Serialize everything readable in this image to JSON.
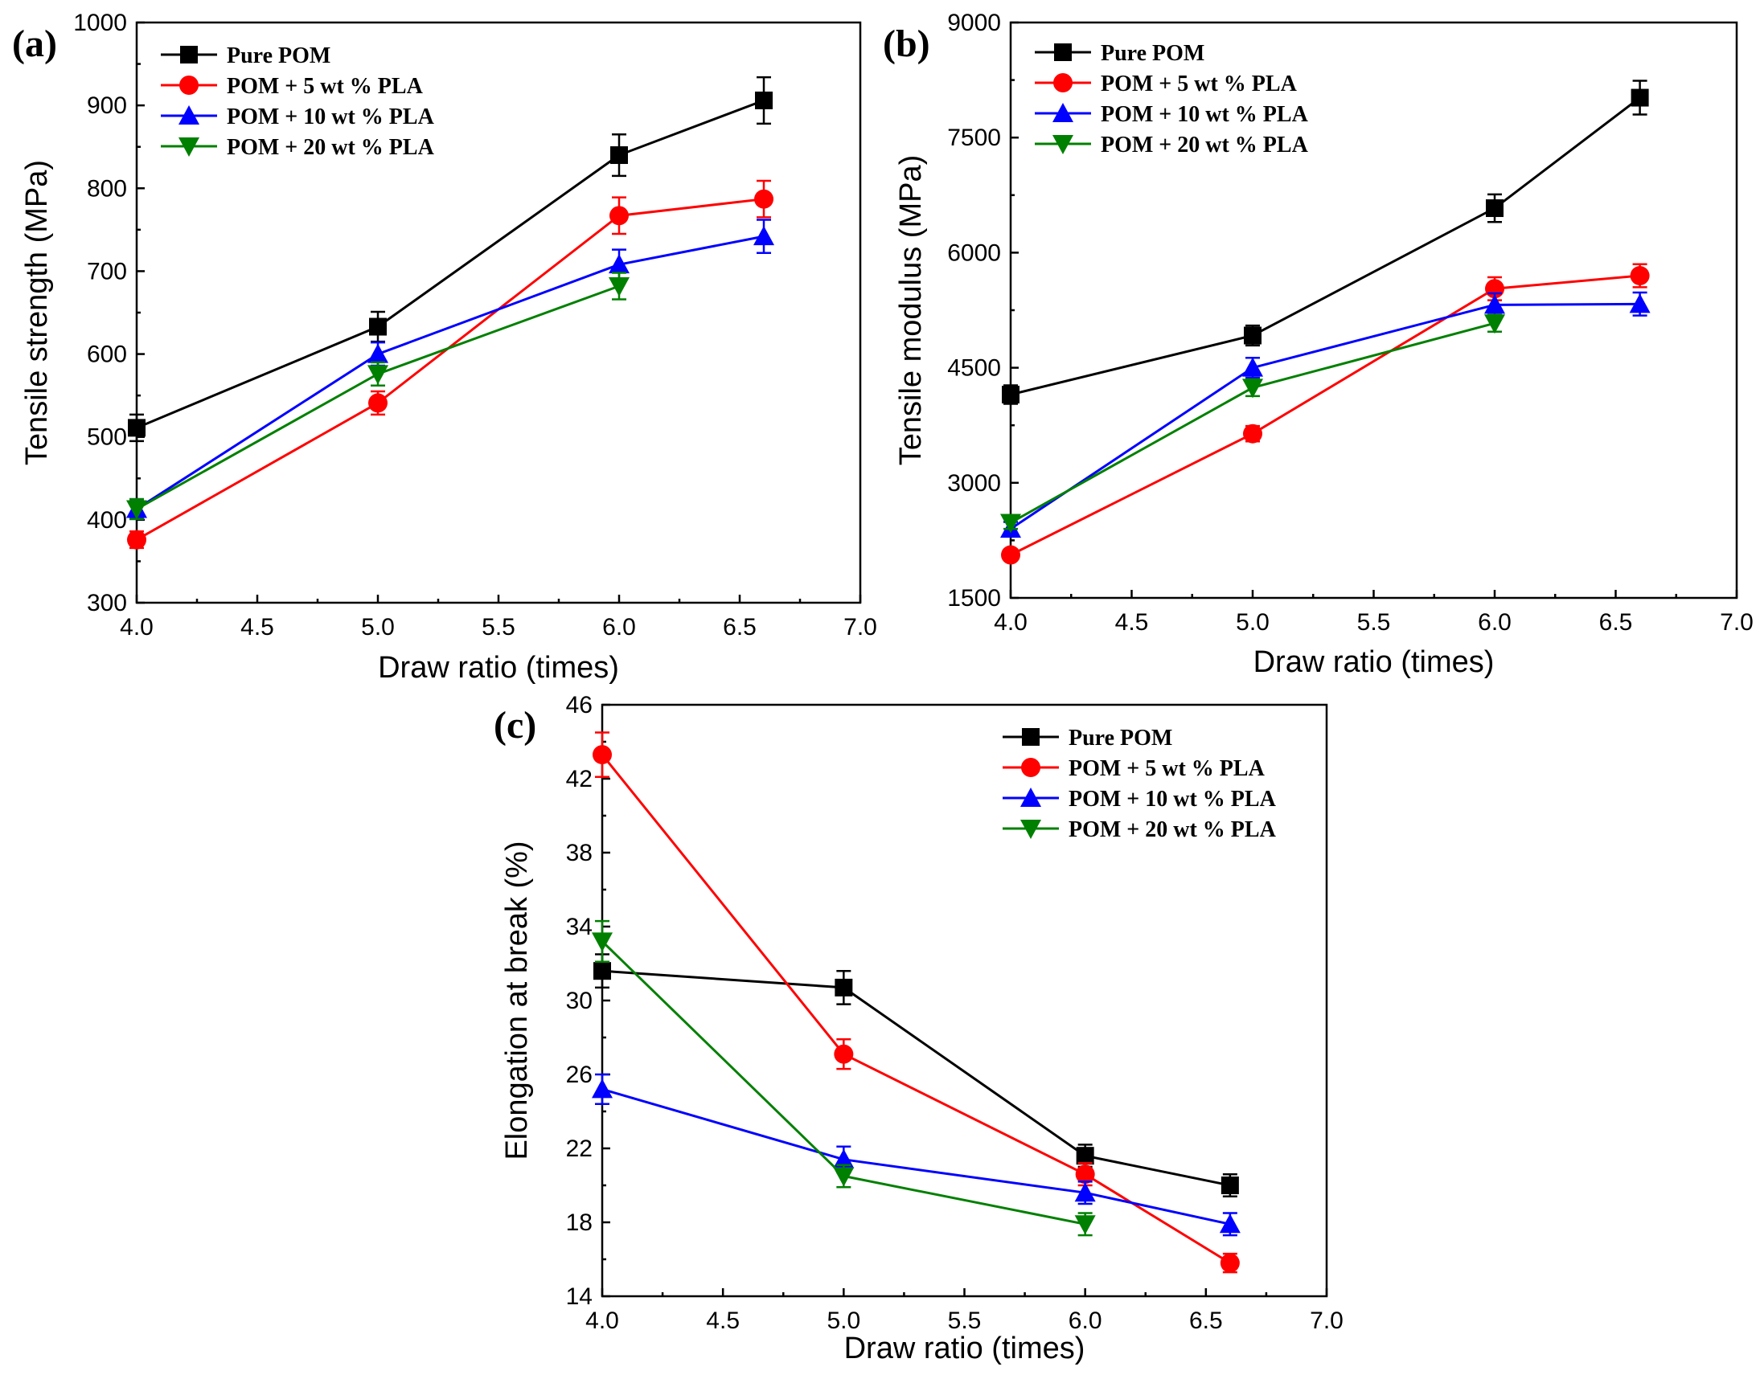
{
  "chart_data": [
    {
      "panel_label": "(a)",
      "type": "line",
      "xlabel": "Draw ratio (times)",
      "ylabel": "Tensile strength (MPa)",
      "xlim": [
        4.0,
        7.0
      ],
      "ylim": [
        300,
        1000
      ],
      "xticks": [
        "4.0",
        "4.5",
        "5.0",
        "5.5",
        "6.0",
        "6.5",
        "7.0"
      ],
      "yticks": [
        "300",
        "400",
        "500",
        "600",
        "700",
        "800",
        "900",
        "1000"
      ],
      "legend_position": "top-left",
      "x": [
        4.0,
        5.0,
        6.0,
        6.6
      ],
      "series": [
        {
          "name": "Pure POM",
          "color": "#000000",
          "marker": "square",
          "values": [
            511,
            633,
            840,
            906
          ],
          "errors": [
            16,
            18,
            25,
            28
          ]
        },
        {
          "name": "POM + 5 wt % PLA",
          "color": "#ff0000",
          "marker": "circle",
          "values": [
            376,
            541,
            767,
            787
          ],
          "errors": [
            10,
            14,
            22,
            22
          ]
        },
        {
          "name": "POM + 10 wt % PLA",
          "color": "#0000ff",
          "marker": "triangle-up",
          "values": [
            413,
            600,
            708,
            742
          ],
          "errors": [
            12,
            14,
            18,
            20
          ]
        },
        {
          "name": "POM + 20 wt % PLA",
          "color": "#008000",
          "marker": "triangle-down",
          "values": [
            413,
            576,
            682,
            null
          ],
          "errors": [
            12,
            14,
            16,
            null
          ]
        }
      ]
    },
    {
      "panel_label": "(b)",
      "type": "line",
      "xlabel": "Draw ratio (times)",
      "ylabel": "Tensile modulus (MPa)",
      "xlim": [
        4.0,
        7.0
      ],
      "ylim": [
        1500,
        9000
      ],
      "xticks": [
        "4.0",
        "4.5",
        "5.0",
        "5.5",
        "6.0",
        "6.5",
        "7.0"
      ],
      "yticks": [
        "1500",
        "3000",
        "4500",
        "6000",
        "7500",
        "9000"
      ],
      "legend_position": "top-left",
      "x": [
        4.0,
        5.0,
        6.0,
        6.6
      ],
      "series": [
        {
          "name": "Pure POM",
          "color": "#000000",
          "marker": "square",
          "values": [
            4150,
            4920,
            6580,
            8020
          ],
          "errors": [
            120,
            130,
            180,
            220
          ]
        },
        {
          "name": "POM + 5 wt % PLA",
          "color": "#ff0000",
          "marker": "circle",
          "values": [
            2060,
            3640,
            5530,
            5700
          ],
          "errors": [
            60,
            100,
            150,
            150
          ]
        },
        {
          "name": "POM + 10 wt % PLA",
          "color": "#0000ff",
          "marker": "triangle-up",
          "values": [
            2400,
            4500,
            5320,
            5330
          ],
          "errors": [
            90,
            130,
            150,
            150
          ]
        },
        {
          "name": "POM + 20 wt % PLA",
          "color": "#008000",
          "marker": "triangle-down",
          "values": [
            2480,
            4240,
            5080,
            null
          ],
          "errors": [
            80,
            110,
            110,
            null
          ]
        }
      ]
    },
    {
      "panel_label": "(c)",
      "type": "line",
      "xlabel": "Draw ratio (times)",
      "ylabel": "Elongation at break (%)",
      "xlim": [
        4.0,
        7.0
      ],
      "ylim": [
        14,
        46
      ],
      "xticks": [
        "4.0",
        "4.5",
        "5.0",
        "5.5",
        "6.0",
        "6.5",
        "7.0"
      ],
      "yticks": [
        "14",
        "18",
        "22",
        "26",
        "30",
        "34",
        "38",
        "42",
        "46"
      ],
      "legend_position": "top-right",
      "x": [
        4.0,
        5.0,
        6.0,
        6.6
      ],
      "series": [
        {
          "name": "Pure POM",
          "color": "#000000",
          "marker": "square",
          "values": [
            31.6,
            30.7,
            21.6,
            20.0
          ],
          "errors": [
            0.9,
            0.9,
            0.6,
            0.6
          ]
        },
        {
          "name": "POM + 5 wt % PLA",
          "color": "#ff0000",
          "marker": "circle",
          "values": [
            43.3,
            27.1,
            20.6,
            15.8
          ],
          "errors": [
            1.2,
            0.8,
            0.6,
            0.5
          ]
        },
        {
          "name": "POM + 10 wt % PLA",
          "color": "#0000ff",
          "marker": "triangle-up",
          "values": [
            25.2,
            21.4,
            19.6,
            17.9
          ],
          "errors": [
            0.8,
            0.7,
            0.6,
            0.6
          ]
        },
        {
          "name": "POM + 20 wt % PLA",
          "color": "#008000",
          "marker": "triangle-down",
          "values": [
            33.2,
            20.5,
            17.9,
            null
          ],
          "errors": [
            1.1,
            0.6,
            0.6,
            null
          ]
        }
      ]
    }
  ]
}
